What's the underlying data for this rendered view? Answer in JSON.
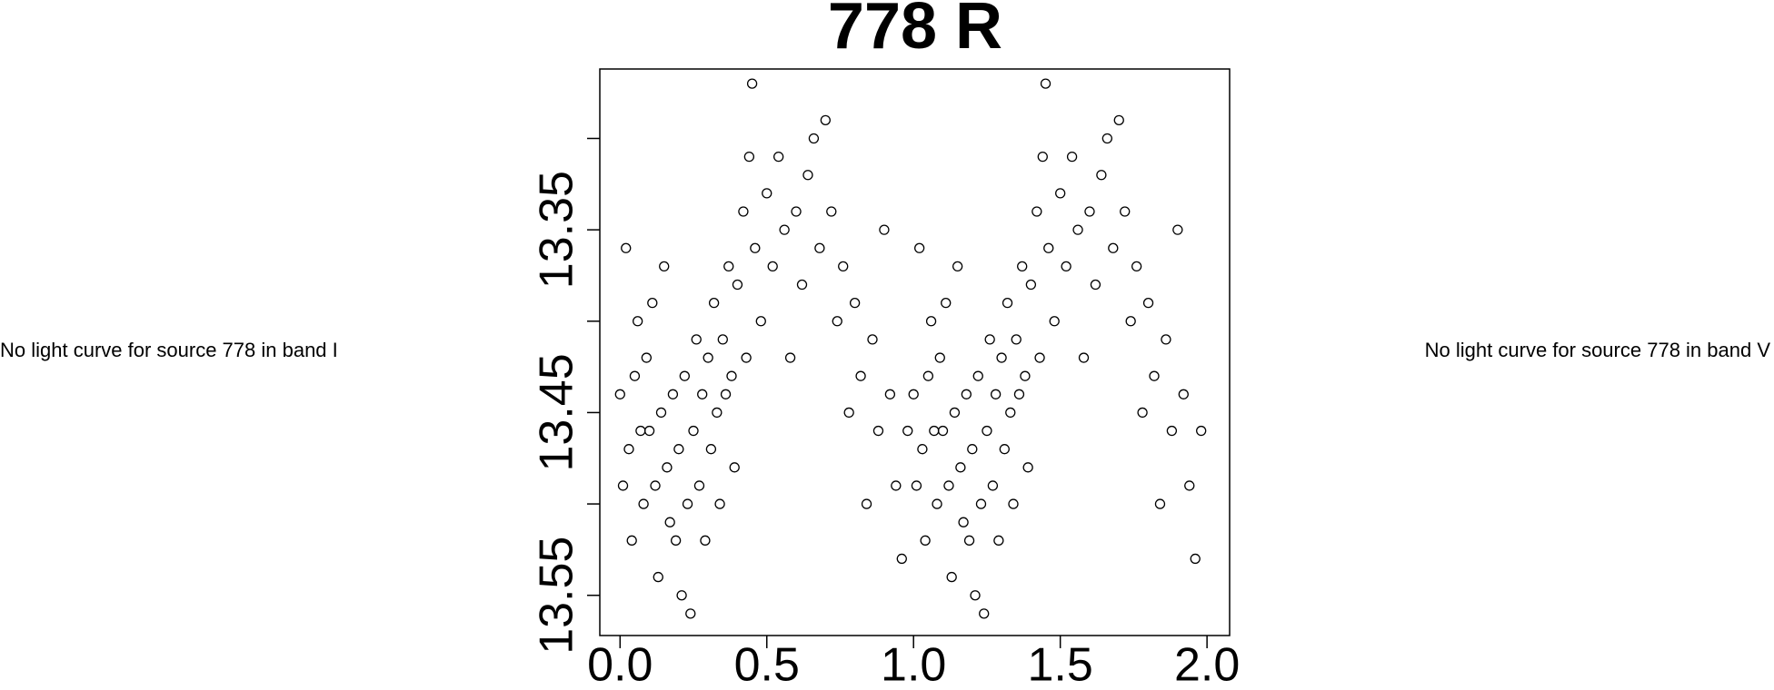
{
  "chart_data": {
    "type": "scatter",
    "title": "778 R",
    "x": [
      0.0,
      0.01,
      0.02,
      0.03,
      0.04,
      0.05,
      0.06,
      0.07,
      0.08,
      0.09,
      0.1,
      0.11,
      0.12,
      0.13,
      0.14,
      0.15,
      0.16,
      0.17,
      0.18,
      0.19,
      0.2,
      0.21,
      0.22,
      0.23,
      0.24,
      0.25,
      0.26,
      0.27,
      0.28,
      0.29,
      0.3,
      0.31,
      0.32,
      0.33,
      0.34,
      0.35,
      0.36,
      0.37,
      0.38,
      0.39,
      0.4,
      0.42,
      0.43,
      0.44,
      0.45,
      0.46,
      0.48,
      0.5,
      0.52,
      0.54,
      0.56,
      0.58,
      0.6,
      0.62,
      0.64,
      0.66,
      0.68,
      0.7,
      0.72,
      0.74,
      0.76,
      0.78,
      0.8,
      0.82,
      0.84,
      0.86,
      0.88,
      0.9,
      0.92,
      0.94,
      0.96,
      0.98,
      1.0,
      1.01,
      1.02,
      1.03,
      1.04,
      1.05,
      1.06,
      1.07,
      1.08,
      1.09,
      1.1,
      1.11,
      1.12,
      1.13,
      1.14,
      1.15,
      1.16,
      1.17,
      1.18,
      1.19,
      1.2,
      1.21,
      1.22,
      1.23,
      1.24,
      1.25,
      1.26,
      1.27,
      1.28,
      1.29,
      1.3,
      1.31,
      1.32,
      1.33,
      1.34,
      1.35,
      1.36,
      1.37,
      1.38,
      1.39,
      1.4,
      1.42,
      1.43,
      1.44,
      1.45,
      1.46,
      1.48,
      1.5,
      1.52,
      1.54,
      1.56,
      1.58,
      1.6,
      1.62,
      1.64,
      1.66,
      1.68,
      1.7,
      1.72,
      1.74,
      1.76,
      1.78,
      1.8,
      1.82,
      1.84,
      1.86,
      1.88,
      1.9,
      1.92,
      1.94,
      1.96,
      1.98
    ],
    "values": [
      13.44,
      13.49,
      13.36,
      13.47,
      13.52,
      13.43,
      13.4,
      13.46,
      13.5,
      13.42,
      13.46,
      13.39,
      13.49,
      13.54,
      13.45,
      13.37,
      13.48,
      13.51,
      13.44,
      13.52,
      13.47,
      13.55,
      13.43,
      13.5,
      13.56,
      13.46,
      13.41,
      13.49,
      13.44,
      13.52,
      13.42,
      13.47,
      13.39,
      13.45,
      13.5,
      13.41,
      13.44,
      13.37,
      13.43,
      13.48,
      13.38,
      13.34,
      13.42,
      13.31,
      13.27,
      13.36,
      13.4,
      13.33,
      13.37,
      13.31,
      13.35,
      13.42,
      13.34,
      13.38,
      13.32,
      13.3,
      13.36,
      13.29,
      13.34,
      13.4,
      13.37,
      13.45,
      13.39,
      13.43,
      13.5,
      13.41,
      13.46,
      13.35,
      13.44,
      13.49,
      13.53,
      13.46,
      13.44,
      13.49,
      13.36,
      13.47,
      13.52,
      13.43,
      13.4,
      13.46,
      13.5,
      13.42,
      13.46,
      13.39,
      13.49,
      13.54,
      13.45,
      13.37,
      13.48,
      13.51,
      13.44,
      13.52,
      13.47,
      13.55,
      13.43,
      13.5,
      13.56,
      13.46,
      13.41,
      13.49,
      13.44,
      13.52,
      13.42,
      13.47,
      13.39,
      13.45,
      13.5,
      13.41,
      13.44,
      13.37,
      13.43,
      13.48,
      13.38,
      13.34,
      13.42,
      13.31,
      13.27,
      13.36,
      13.4,
      13.33,
      13.37,
      13.31,
      13.35,
      13.42,
      13.34,
      13.38,
      13.32,
      13.3,
      13.36,
      13.29,
      13.34,
      13.4,
      13.37,
      13.45,
      13.39,
      13.43,
      13.5,
      13.41,
      13.46,
      13.35,
      13.44,
      13.49,
      13.53,
      13.46
    ],
    "color": "#000000",
    "xlim": [
      -0.069,
      2.077
    ],
    "xticks": [
      {
        "value": 0,
        "label": "0.0"
      },
      0.5,
      {
        "value": 1,
        "label": "1.0"
      },
      1.5,
      {
        "value": 2,
        "label": "2.0"
      }
    ],
    "ylim": [
      13.262,
      13.572
    ],
    "y_inverted": true,
    "yticks": [
      13.35,
      13.45,
      13.55
    ],
    "yminor_ticks": [
      13.3,
      13.4,
      13.5
    ]
  },
  "notes": [
    "No light curve for source 778 in band I",
    "No light curve for source 778 in band V"
  ]
}
